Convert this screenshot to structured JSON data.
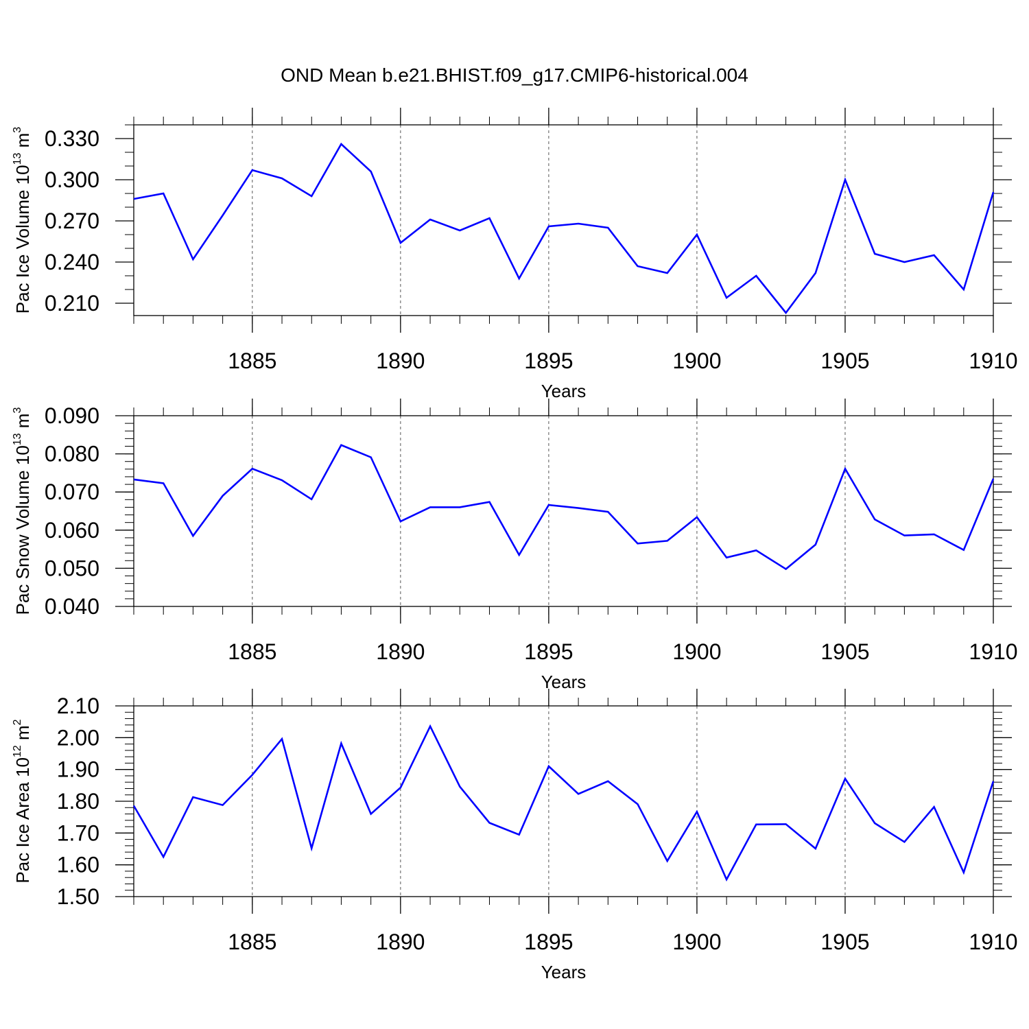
{
  "figure": {
    "title": "OND Mean b.e21.BHIST.f09_g17.CMIP6-historical.004",
    "line_color": "#0000ff"
  },
  "chart_data": [
    {
      "type": "line",
      "xlabel": "Years",
      "ylabel": {
        "prefix": "Pac Ice Volume 10",
        "exp1": "13",
        "mid": " m",
        "exp2": "3"
      },
      "xlim": [
        1881,
        1910
      ],
      "ylim": [
        0.201,
        0.34
      ],
      "xticks": [
        1885,
        1890,
        1895,
        1900,
        1905,
        1910
      ],
      "xtick_labels": [
        "1885",
        "1890",
        "1895",
        "1900",
        "1905",
        "1910"
      ],
      "yticks": [
        0.21,
        0.24,
        0.27,
        0.3,
        0.33
      ],
      "ytick_labels": [
        "0.210",
        "0.240",
        "0.270",
        "0.300",
        "0.330"
      ],
      "y_minor_step": 0.01,
      "grid": "vertical dashed at major x ticks",
      "x": [
        1881,
        1882,
        1883,
        1884,
        1885,
        1886,
        1887,
        1888,
        1889,
        1890,
        1891,
        1892,
        1893,
        1894,
        1895,
        1896,
        1897,
        1898,
        1899,
        1900,
        1901,
        1902,
        1903,
        1904,
        1905,
        1906,
        1907,
        1908,
        1909,
        1910
      ],
      "values": [
        0.286,
        0.29,
        0.242,
        0.274,
        0.307,
        0.301,
        0.288,
        0.326,
        0.306,
        0.254,
        0.271,
        0.263,
        0.272,
        0.228,
        0.266,
        0.268,
        0.265,
        0.237,
        0.232,
        0.26,
        0.214,
        0.23,
        0.203,
        0.232,
        0.3,
        0.246,
        0.24,
        0.245,
        0.22,
        0.291
      ]
    },
    {
      "type": "line",
      "xlabel": "Years",
      "ylabel": {
        "prefix": "Pac Snow Volume 10",
        "exp1": "13",
        "mid": " m",
        "exp2": "3"
      },
      "xlim": [
        1881,
        1910
      ],
      "ylim": [
        0.04,
        0.09
      ],
      "xticks": [
        1885,
        1890,
        1895,
        1900,
        1905,
        1910
      ],
      "xtick_labels": [
        "1885",
        "1890",
        "1895",
        "1900",
        "1905",
        "1910"
      ],
      "yticks": [
        0.04,
        0.05,
        0.06,
        0.07,
        0.08,
        0.09
      ],
      "ytick_labels": [
        "0.040",
        "0.050",
        "0.060",
        "0.070",
        "0.080",
        "0.090"
      ],
      "y_minor_step": 0.002,
      "grid": "vertical dashed at major x ticks",
      "x": [
        1881,
        1882,
        1883,
        1884,
        1885,
        1886,
        1887,
        1888,
        1889,
        1890,
        1891,
        1892,
        1893,
        1894,
        1895,
        1896,
        1897,
        1898,
        1899,
        1900,
        1901,
        1902,
        1903,
        1904,
        1905,
        1906,
        1907,
        1908,
        1909,
        1910
      ],
      "values": [
        0.0733,
        0.0723,
        0.0585,
        0.069,
        0.0761,
        0.0731,
        0.0681,
        0.0823,
        0.0791,
        0.0623,
        0.066,
        0.066,
        0.0674,
        0.0535,
        0.0666,
        0.0658,
        0.0648,
        0.0565,
        0.0572,
        0.0634,
        0.0528,
        0.0547,
        0.0498,
        0.0562,
        0.0761,
        0.0628,
        0.0586,
        0.0589,
        0.0548,
        0.0735
      ]
    },
    {
      "type": "line",
      "xlabel": "Years",
      "ylabel": {
        "prefix": "Pac Ice Area 10",
        "exp1": "12",
        "mid": " m",
        "exp2": "2"
      },
      "xlim": [
        1881,
        1910
      ],
      "ylim": [
        1.5,
        2.1
      ],
      "xticks": [
        1885,
        1890,
        1895,
        1900,
        1905,
        1910
      ],
      "xtick_labels": [
        "1885",
        "1890",
        "1895",
        "1900",
        "1905",
        "1910"
      ],
      "yticks": [
        1.5,
        1.6,
        1.7,
        1.8,
        1.9,
        2.0,
        2.1
      ],
      "ytick_labels": [
        "1.50",
        "1.60",
        "1.70",
        "1.80",
        "1.90",
        "2.00",
        "2.10"
      ],
      "y_minor_step": 0.02,
      "grid": "vertical dashed at major x ticks",
      "x": [
        1881,
        1882,
        1883,
        1884,
        1885,
        1886,
        1887,
        1888,
        1889,
        1890,
        1891,
        1892,
        1893,
        1894,
        1895,
        1896,
        1897,
        1898,
        1899,
        1900,
        1901,
        1902,
        1903,
        1904,
        1905,
        1906,
        1907,
        1908,
        1909,
        1910
      ],
      "values": [
        1.786,
        1.625,
        1.813,
        1.788,
        1.883,
        1.996,
        1.652,
        1.982,
        1.76,
        1.843,
        2.036,
        1.846,
        1.732,
        1.695,
        1.91,
        1.823,
        1.863,
        1.791,
        1.612,
        1.767,
        1.554,
        1.727,
        1.728,
        1.651,
        1.871,
        1.731,
        1.672,
        1.782,
        1.576,
        1.863
      ]
    }
  ]
}
